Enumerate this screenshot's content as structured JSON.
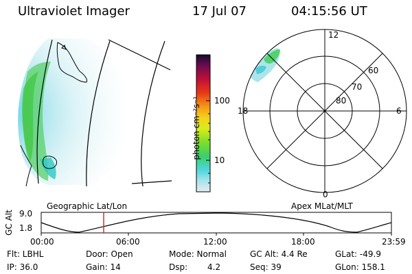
{
  "header": {
    "instrument": "Ultraviolet Imager",
    "date": "17 Jul 07",
    "time": "04:15:56 UT"
  },
  "colorbar": {
    "label": "photon cm⁻²s⁻¹",
    "ticks": [
      "100",
      "10"
    ]
  },
  "polar_plot": {
    "mlt_labels": [
      "12",
      "18",
      "6",
      "0"
    ],
    "mlat_labels": [
      "60",
      "70",
      "80"
    ]
  },
  "map_caption": "Geographic Lat/Lon",
  "polar_caption": "Apex MLat/MLT",
  "altitude_plot": {
    "ylabel": "GC Alt",
    "y_ticks": [
      "9.0",
      "1.8"
    ],
    "x_ticks": [
      "00:00",
      "06:00",
      "12:00",
      "18:00",
      "23:59"
    ],
    "current_time_marker": "04:15:56"
  },
  "info": {
    "filter": "Flt: LBHL",
    "door": "Door: Open",
    "mode": "Mode: Normal",
    "gc_alt": "GC Alt: 4.4 Re",
    "glat": "GLat: -49.9",
    "ip": "IP: 36.0",
    "gain": "Gain: 14",
    "dsp_label": "Dsp:",
    "dsp_value": "4.2",
    "seq": "Seq: 39",
    "glon": "GLon: 158.1"
  },
  "colors": {
    "marker": "#c0392b",
    "aurora_cyan": "#7ad9e6",
    "aurora_green": "#4ccf3a"
  }
}
